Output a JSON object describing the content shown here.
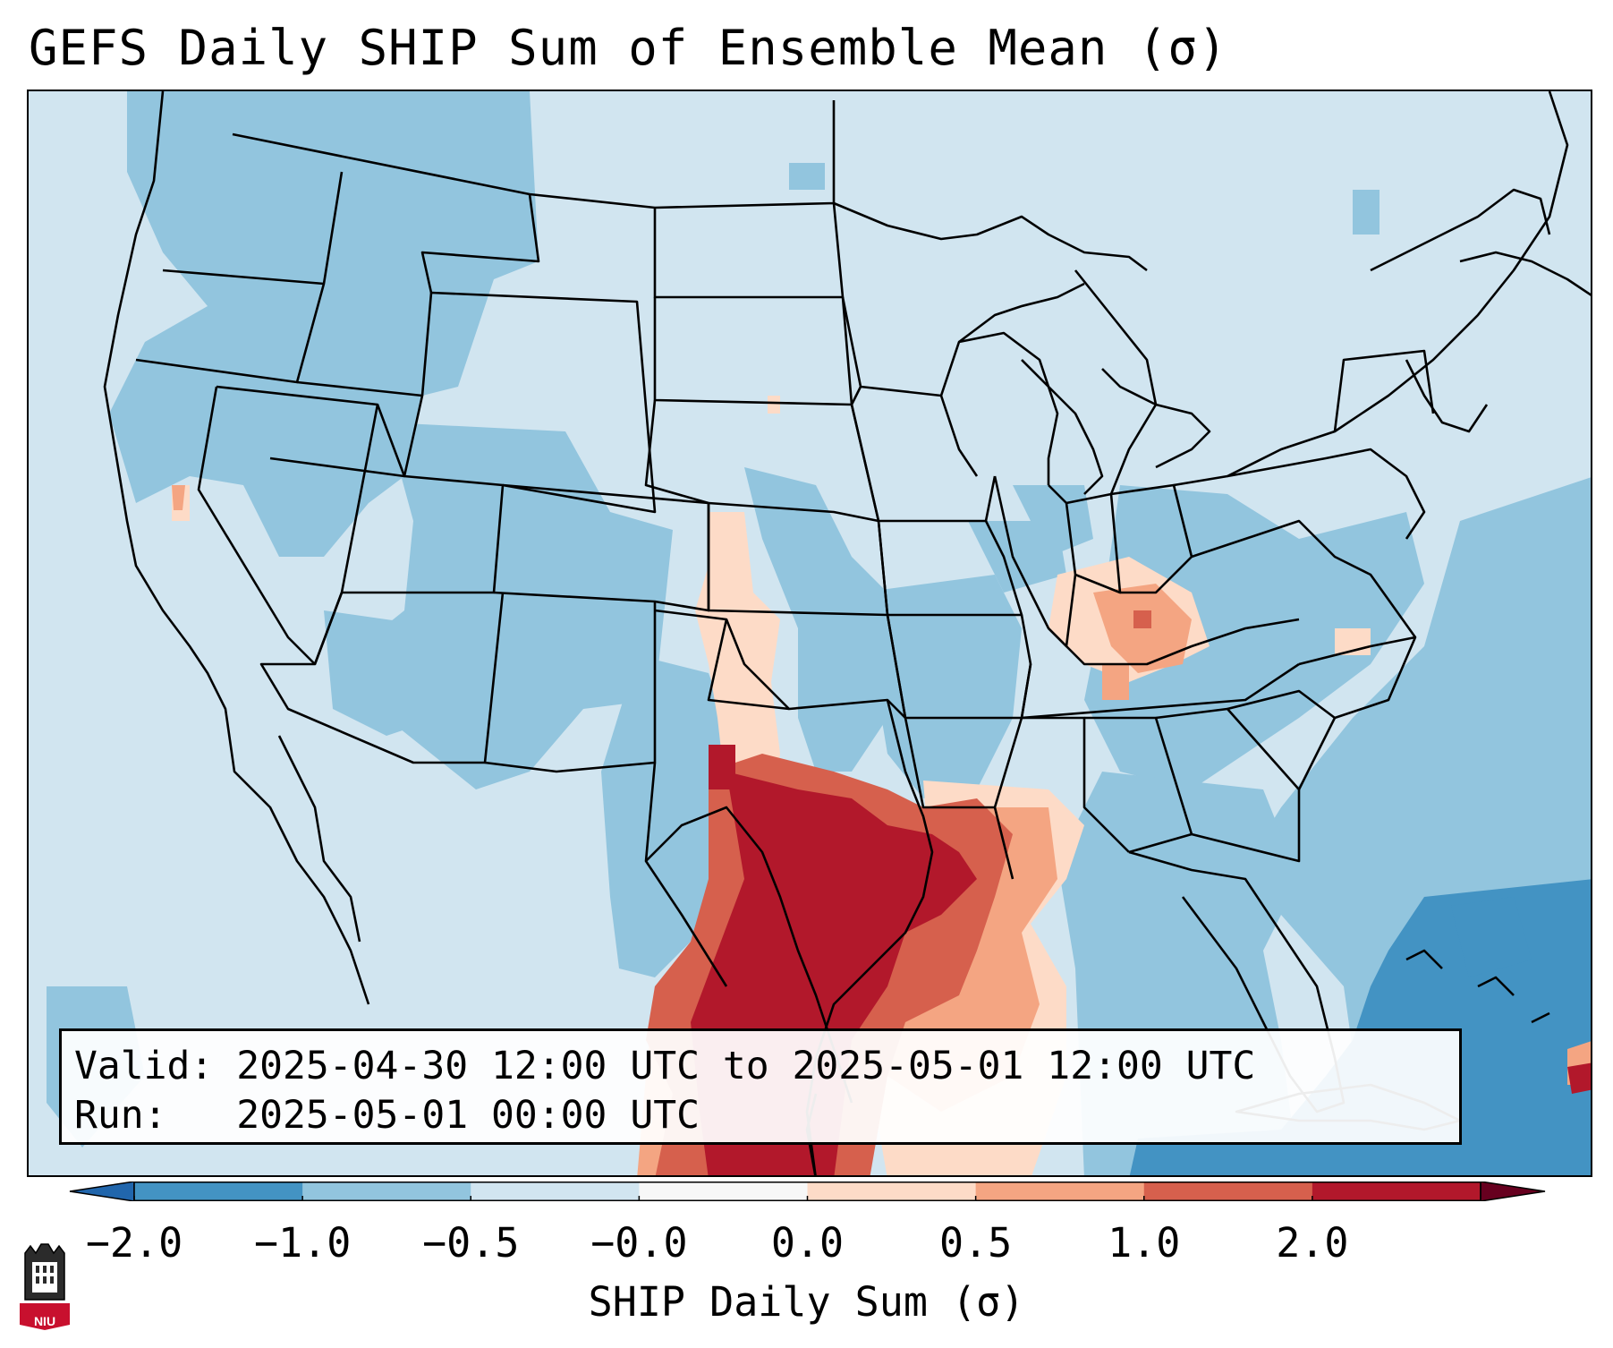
{
  "title": "GEFS Daily SHIP Sum of Ensemble Mean (σ)",
  "info": {
    "valid_line": "Valid: 2025-04-30 12:00 UTC to 2025-05-01 12:00 UTC",
    "run_line": "Run:   2025-05-01 00:00 UTC"
  },
  "colorbar": {
    "label": "SHIP Daily Sum (σ)",
    "ticks": [
      "−2.0",
      "−1.0",
      "−0.5",
      "−0.0",
      "0.0",
      "0.5",
      "1.0",
      "2.0"
    ],
    "colors": [
      "#4393c3",
      "#92c5de",
      "#d1e5f0",
      "#f7f7f7",
      "#fddbc7",
      "#f4a582",
      "#d6604d",
      "#b2182b"
    ],
    "under_color": "#2166ac",
    "over_color": "#67001f"
  },
  "logo": {
    "text": "NIU"
  }
}
